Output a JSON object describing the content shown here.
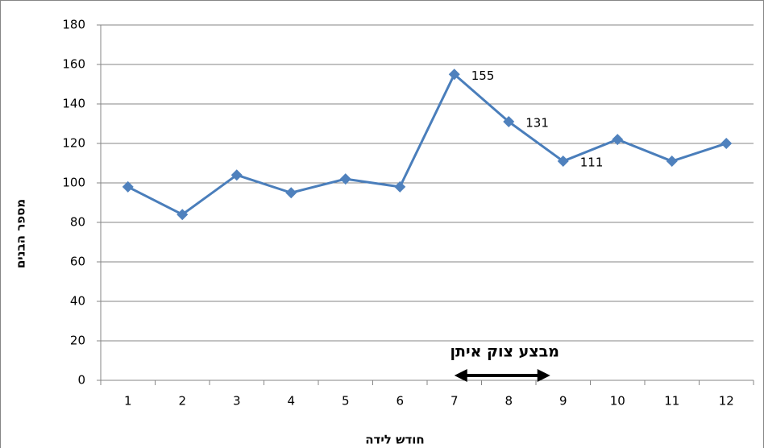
{
  "chart_data": {
    "type": "line",
    "x_label": "חודש לידה",
    "y_label": "מספר הבנים",
    "categories": [
      "1",
      "2",
      "3",
      "4",
      "5",
      "6",
      "7",
      "8",
      "9",
      "10",
      "11",
      "12"
    ],
    "series": [
      {
        "name": null,
        "color": "#4a7ebb",
        "values": [
          98,
          84,
          104,
          95,
          102,
          98,
          155,
          131,
          111,
          122,
          111,
          120
        ],
        "value_labels": [
          null,
          null,
          null,
          null,
          null,
          null,
          "155",
          "131",
          "111",
          null,
          null,
          null
        ]
      }
    ],
    "ylim": [
      0,
      180
    ],
    "yticks": [
      0,
      20,
      40,
      60,
      80,
      100,
      120,
      140,
      160,
      180
    ],
    "grid": true,
    "annotation": {
      "text": "מבצע צוק איתן",
      "span": [
        "7",
        "9"
      ]
    }
  }
}
